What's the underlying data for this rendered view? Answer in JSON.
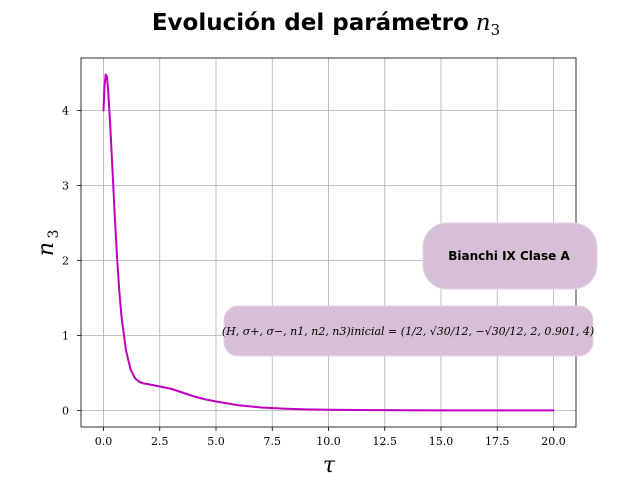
{
  "chart_data": {
    "type": "line",
    "title": "Evolución del parámetro",
    "title_math": "n",
    "title_math_sub": "3",
    "xlabel": "τ",
    "ylabel": "n",
    "ylabel_sub": "3",
    "xlim": [
      -1.0,
      21.0
    ],
    "ylim": [
      -0.22,
      4.7
    ],
    "grid": true,
    "x_ticks": [
      0.0,
      2.5,
      5.0,
      7.5,
      10.0,
      12.5,
      15.0,
      17.5,
      20.0
    ],
    "x_tick_labels": [
      "0.0",
      "2.5",
      "5.0",
      "7.5",
      "10.0",
      "12.5",
      "15.0",
      "17.5",
      "20.0"
    ],
    "y_ticks": [
      0,
      1,
      2,
      3,
      4
    ],
    "y_tick_labels": [
      "0",
      "1",
      "2",
      "3",
      "4"
    ],
    "series": [
      {
        "color": "#bf00bf",
        "x": [
          0.0,
          0.05,
          0.1,
          0.15,
          0.2,
          0.3,
          0.4,
          0.5,
          0.6,
          0.7,
          0.8,
          1.0,
          1.2,
          1.4,
          1.6,
          1.8,
          2.0,
          2.5,
          3.0,
          3.5,
          4.0,
          4.5,
          5.0,
          6.0,
          7.0,
          8.0,
          9.0,
          10.0,
          12.0,
          15.0,
          17.5,
          20.0
        ],
        "y": [
          4.0,
          4.35,
          4.48,
          4.45,
          4.3,
          3.8,
          3.2,
          2.6,
          2.05,
          1.6,
          1.25,
          0.8,
          0.55,
          0.43,
          0.38,
          0.36,
          0.35,
          0.32,
          0.29,
          0.24,
          0.19,
          0.15,
          0.12,
          0.07,
          0.04,
          0.025,
          0.015,
          0.01,
          0.005,
          0.002,
          0.001,
          0.001
        ]
      }
    ],
    "annotations": [
      {
        "text": "Bianchi IX Clase A"
      },
      {
        "text": "(H, σ+, σ−, n1, n2, n3)inicial = (1/2, √30/12, −√30/12, 2, 0.901, 4)"
      }
    ]
  }
}
